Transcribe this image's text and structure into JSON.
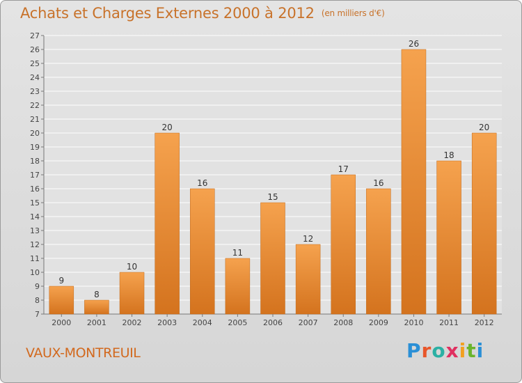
{
  "header": {
    "title": "Achats et Charges Externes 2000 à 2012",
    "unit": "(en milliers d'€)"
  },
  "footer": {
    "commune": "VAUX-MONTREUIL",
    "logo": "Proxiti"
  },
  "colors": {
    "bar_light": "#f5a24e",
    "bar_dark": "#d4731e",
    "title": "#c8722a",
    "grid": "#ffffff"
  },
  "chart_data": {
    "type": "bar",
    "title": "Achats et Charges Externes 2000 à 2012",
    "categories": [
      "2000",
      "2001",
      "2002",
      "2003",
      "2004",
      "2005",
      "2006",
      "2007",
      "2008",
      "2009",
      "2010",
      "2011",
      "2012"
    ],
    "values": [
      9,
      8,
      10,
      20,
      16,
      11,
      15,
      12,
      17,
      16,
      26,
      18,
      20
    ],
    "ylim": [
      7,
      27
    ],
    "yticks": [
      7,
      8,
      9,
      10,
      11,
      12,
      13,
      14,
      15,
      16,
      17,
      18,
      19,
      20,
      21,
      22,
      23,
      24,
      25,
      26,
      27
    ],
    "grid": true,
    "legend": "none"
  }
}
